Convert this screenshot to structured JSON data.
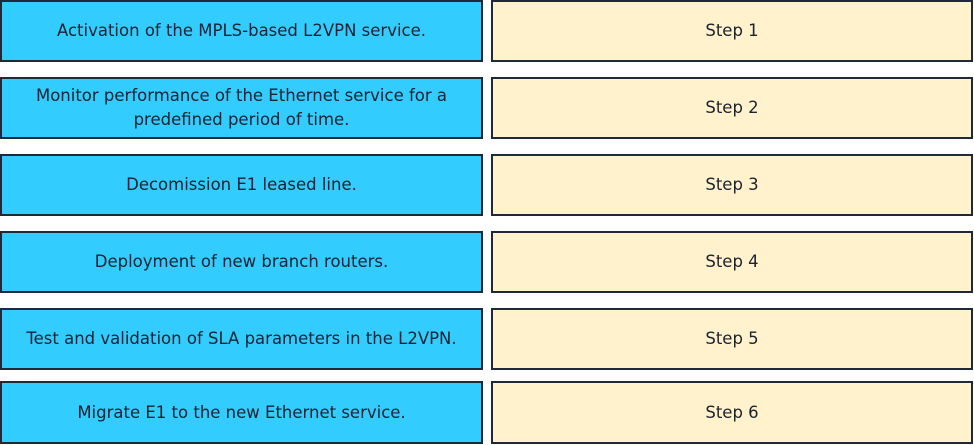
{
  "colors": {
    "task_fill": "#33ccff",
    "step_fill": "#fff2cc",
    "border": "#1e2a38"
  },
  "tasks": [
    "Activation of the MPLS-based L2VPN service.",
    "Monitor performance of the Ethernet service for a predefined period of time.",
    "Decomission E1 leased line.",
    "Deployment of new branch routers.",
    "Test and validation of SLA parameters in the L2VPN.",
    "Migrate E1 to the new Ethernet service."
  ],
  "steps": [
    "Step 1",
    "Step 2",
    "Step 3",
    "Step 4",
    "Step 5",
    "Step 6"
  ]
}
